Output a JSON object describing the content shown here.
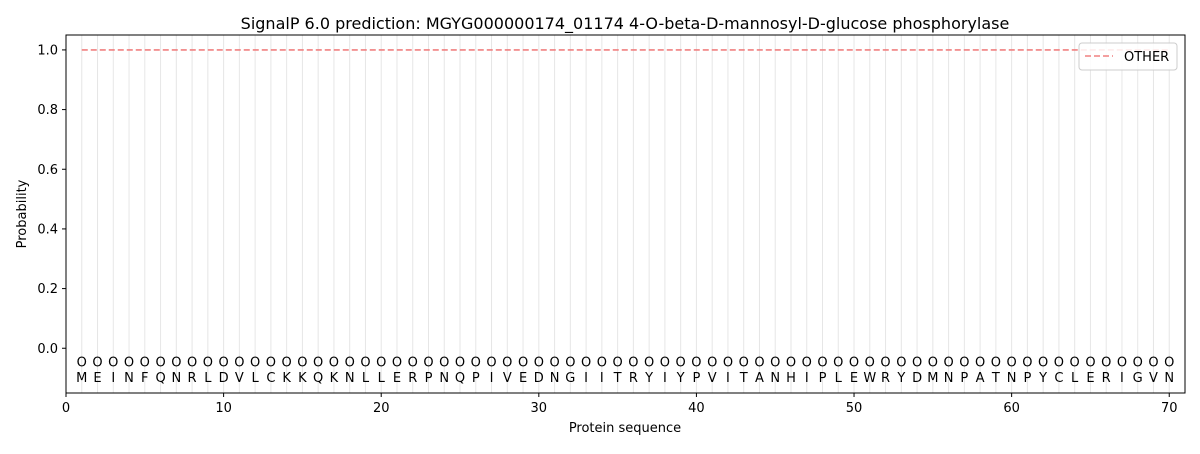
{
  "chart_data": {
    "type": "line",
    "title": "SignalP 6.0 prediction: MGYG000000174_01174 4-O-beta-D-mannosyl-D-glucose phosphorylase",
    "xlabel": "Protein sequence",
    "ylabel": "Probability",
    "xlim": [
      0,
      71
    ],
    "ylim": [
      -0.15,
      1.05
    ],
    "x_ticks": [
      0,
      10,
      20,
      30,
      40,
      50,
      60,
      70
    ],
    "y_ticks": [
      0.0,
      0.2,
      0.4,
      0.6,
      0.8,
      1.0
    ],
    "x_tick_labels": [
      "0",
      "10",
      "20",
      "30",
      "40",
      "50",
      "60",
      "70"
    ],
    "y_tick_labels": [
      "0.0",
      "0.2",
      "0.4",
      "0.6",
      "0.8",
      "1.0"
    ],
    "legend_position": "top-right",
    "series": [
      {
        "name": "OTHER",
        "color": "#f08080",
        "style": "dashed",
        "x": [
          1,
          70
        ],
        "y": [
          1.0,
          1.0
        ]
      }
    ],
    "sequence": [
      "M",
      "E",
      "I",
      "N",
      "F",
      "Q",
      "N",
      "R",
      "L",
      "D",
      "V",
      "L",
      "C",
      "K",
      "K",
      "Q",
      "K",
      "N",
      "L",
      "L",
      "E",
      "R",
      "P",
      "N",
      "Q",
      "P",
      "I",
      "V",
      "E",
      "D",
      "N",
      "G",
      "I",
      "I",
      "T",
      "R",
      "Y",
      "I",
      "Y",
      "P",
      "V",
      "I",
      "T",
      "A",
      "N",
      "H",
      "I",
      "P",
      "L",
      "E",
      "W",
      "R",
      "Y",
      "D",
      "M",
      "N",
      "P",
      "A",
      "T",
      "N",
      "P",
      "Y",
      "C",
      "L",
      "E",
      "R",
      "I",
      "G",
      "V",
      "N"
    ],
    "region_label_symbol": "O",
    "region_label_y": -0.045,
    "vertical_guides": true
  }
}
